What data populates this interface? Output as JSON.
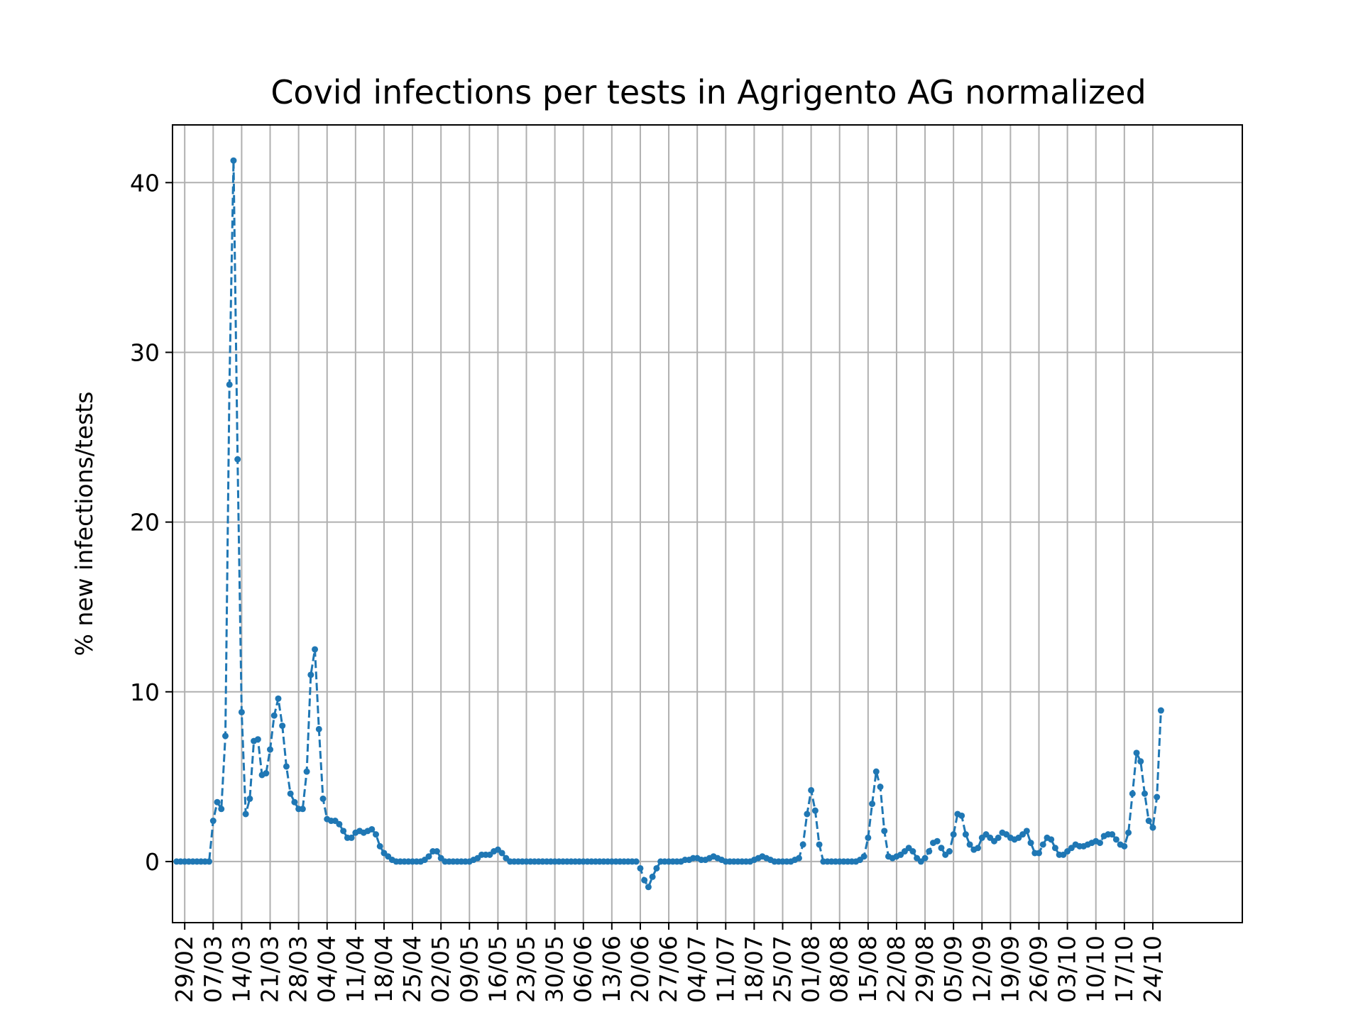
{
  "chart_data": {
    "type": "line",
    "title": "Covid infections per tests in Agrigento AG normalized",
    "xlabel": "",
    "ylabel": "% new infections/tests",
    "ylim": [
      -3.6,
      43.4
    ],
    "yticks": [
      0,
      10,
      20,
      30,
      40
    ],
    "grid": true,
    "line_style": "dashed",
    "marker": "dot",
    "colors": {
      "series": "#1f77b4"
    },
    "x_start_day": 0,
    "x_range_days": [
      -3,
      260
    ],
    "xticks": [
      {
        "day": 0,
        "label": "29/02"
      },
      {
        "day": 7,
        "label": "07/03"
      },
      {
        "day": 14,
        "label": "14/03"
      },
      {
        "day": 21,
        "label": "21/03"
      },
      {
        "day": 28,
        "label": "28/03"
      },
      {
        "day": 35,
        "label": "04/04"
      },
      {
        "day": 42,
        "label": "11/04"
      },
      {
        "day": 49,
        "label": "18/04"
      },
      {
        "day": 56,
        "label": "25/04"
      },
      {
        "day": 63,
        "label": "02/05"
      },
      {
        "day": 70,
        "label": "09/05"
      },
      {
        "day": 77,
        "label": "16/05"
      },
      {
        "day": 84,
        "label": "23/05"
      },
      {
        "day": 91,
        "label": "30/05"
      },
      {
        "day": 98,
        "label": "06/06"
      },
      {
        "day": 105,
        "label": "13/06"
      },
      {
        "day": 112,
        "label": "20/06"
      },
      {
        "day": 119,
        "label": "27/06"
      },
      {
        "day": 126,
        "label": "04/07"
      },
      {
        "day": 133,
        "label": "11/07"
      },
      {
        "day": 140,
        "label": "18/07"
      },
      {
        "day": 147,
        "label": "25/07"
      },
      {
        "day": 154,
        "label": "01/08"
      },
      {
        "day": 161,
        "label": "08/08"
      },
      {
        "day": 168,
        "label": "15/08"
      },
      {
        "day": 175,
        "label": "22/08"
      },
      {
        "day": 182,
        "label": "29/08"
      },
      {
        "day": 189,
        "label": "05/09"
      },
      {
        "day": 196,
        "label": "12/09"
      },
      {
        "day": 203,
        "label": "19/09"
      },
      {
        "day": 210,
        "label": "26/09"
      },
      {
        "day": 217,
        "label": "03/10"
      },
      {
        "day": 224,
        "label": "10/10"
      },
      {
        "day": 231,
        "label": "17/10"
      },
      {
        "day": 238,
        "label": "24/10"
      }
    ],
    "series": [
      {
        "start_day": -2,
        "values": [
          0,
          0,
          0,
          0,
          0,
          0,
          0,
          0,
          0,
          2.4,
          3.5,
          3.1,
          7.4,
          28.1,
          41.3,
          23.7,
          8.8,
          2.8,
          3.7,
          7.1,
          7.2,
          5.1,
          5.2,
          6.6,
          8.6,
          9.6,
          8.0,
          5.6,
          4.0,
          3.5,
          3.1,
          3.1,
          5.3,
          11.0,
          12.5,
          7.8,
          3.7,
          2.5,
          2.4,
          2.4,
          2.2,
          1.8,
          1.4,
          1.4,
          1.7,
          1.8,
          1.7,
          1.8,
          1.9,
          1.6,
          0.9,
          0.5,
          0.3,
          0.1,
          0,
          0,
          0,
          0,
          0,
          0,
          0,
          0.1,
          0.3,
          0.6,
          0.6,
          0.2,
          0,
          0,
          0,
          0,
          0,
          0,
          0,
          0.1,
          0.2,
          0.4,
          0.4,
          0.4,
          0.6,
          0.7,
          0.5,
          0.2,
          0,
          0,
          0,
          0,
          0,
          0,
          0,
          0,
          0,
          0,
          0,
          0,
          0,
          0,
          0,
          0,
          0,
          0,
          0,
          0,
          0,
          0,
          0,
          0,
          0,
          0,
          0,
          0,
          0,
          0,
          0,
          0,
          -0.4,
          -1.1,
          -1.5,
          -0.9,
          -0.4,
          0,
          0,
          0,
          0,
          0,
          0,
          0.1,
          0.1,
          0.2,
          0.2,
          0.1,
          0.1,
          0.2,
          0.3,
          0.2,
          0.1,
          0,
          0,
          0,
          0,
          0,
          0,
          0,
          0.1,
          0.2,
          0.3,
          0.2,
          0.1,
          0,
          0,
          0,
          0,
          0,
          0.1,
          0.2,
          1.0,
          2.8,
          4.2,
          3.0,
          1.0,
          0,
          0,
          0,
          0,
          0,
          0,
          0,
          0,
          0,
          0.1,
          0.3,
          1.4,
          3.4,
          5.3,
          4.4,
          1.8,
          0.3,
          0.2,
          0.3,
          0.4,
          0.6,
          0.8,
          0.6,
          0.2,
          0,
          0.2,
          0.6,
          1.1,
          1.2,
          0.8,
          0.4,
          0.6,
          1.6,
          2.8,
          2.7,
          1.6,
          1.0,
          0.7,
          0.8,
          1.4,
          1.6,
          1.4,
          1.2,
          1.4,
          1.7,
          1.6,
          1.4,
          1.3,
          1.4,
          1.6,
          1.8,
          1.1,
          0.5,
          0.5,
          1.0,
          1.4,
          1.3,
          0.8,
          0.4,
          0.4,
          0.6,
          0.8,
          1.0,
          0.9,
          0.9,
          1.0,
          1.1,
          1.2,
          1.1,
          1.5,
          1.6,
          1.6,
          1.3,
          1.0,
          0.9,
          1.7,
          4.0,
          6.4,
          5.9,
          4.0,
          2.4,
          2.0,
          3.8,
          8.9
        ]
      }
    ]
  }
}
